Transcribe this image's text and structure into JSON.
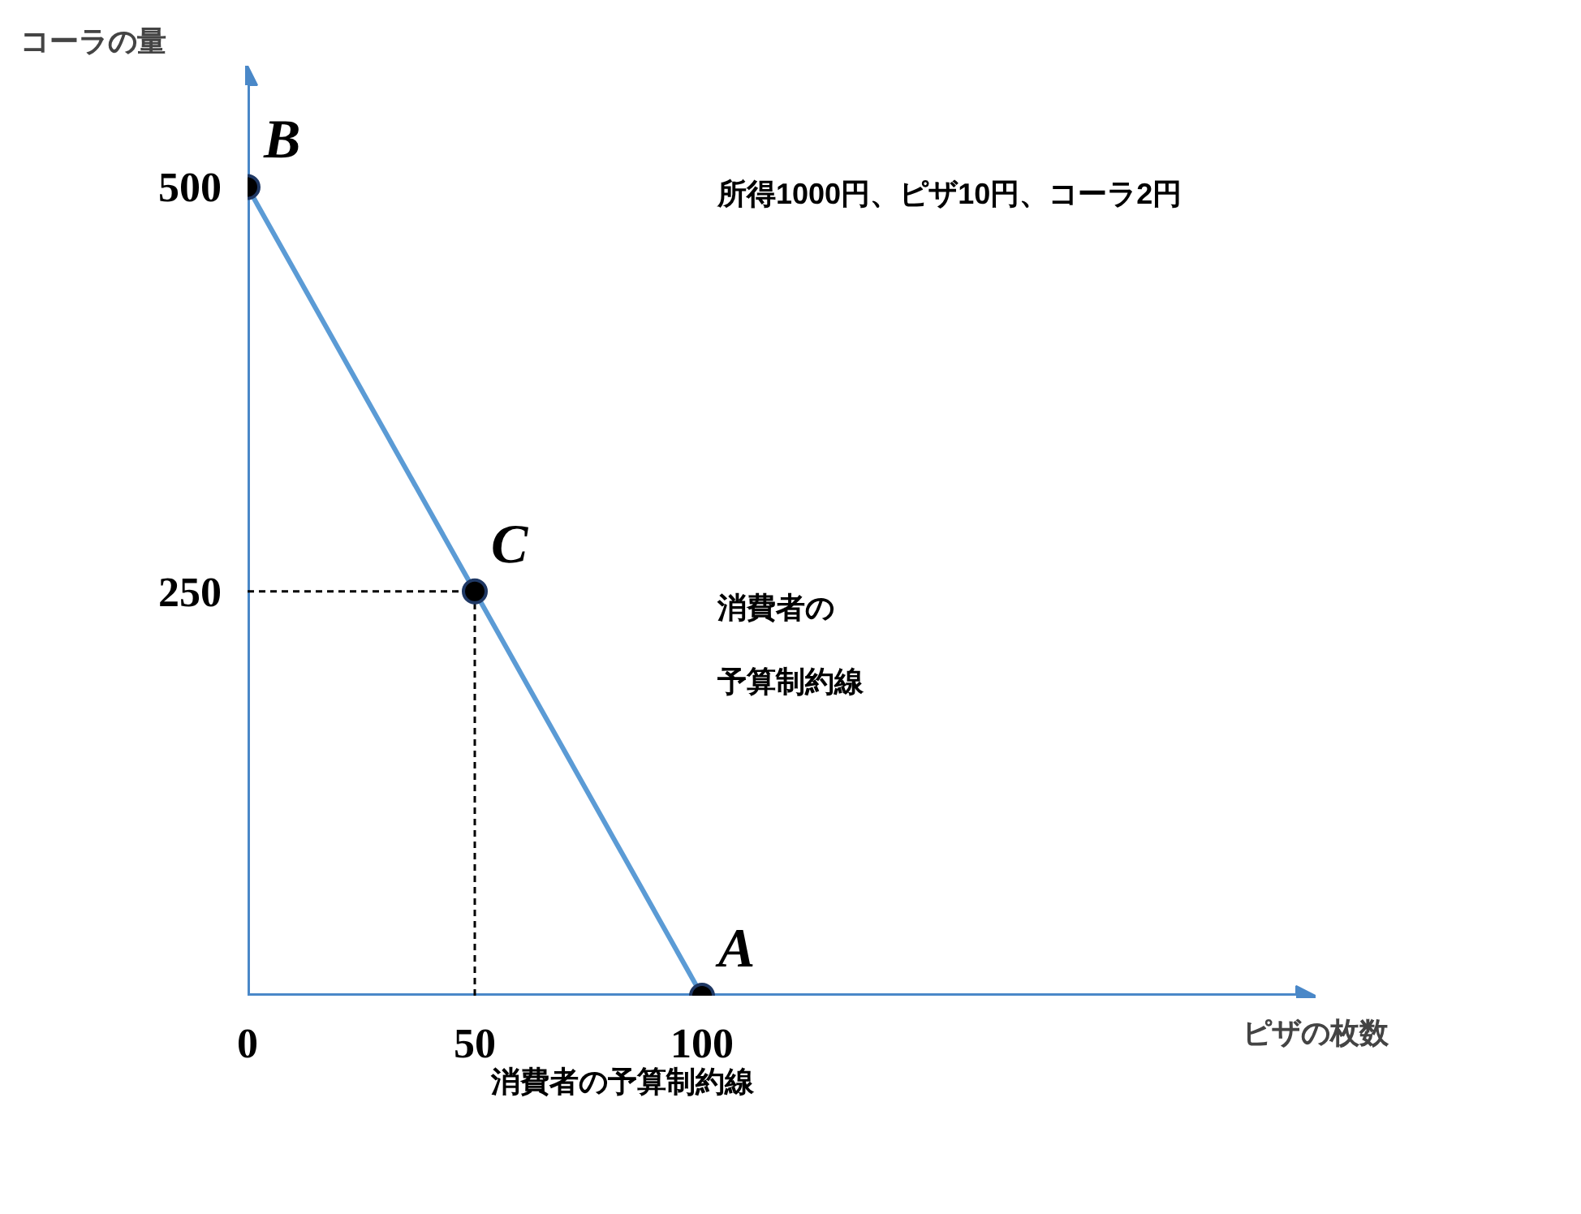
{
  "chart_data": {
    "type": "line",
    "xlabel": "ピザの枚数",
    "ylabel": "コーラの量",
    "x": [
      0,
      50,
      100
    ],
    "series": [
      {
        "color": "#5b9bd5",
        "values": [
          500,
          250,
          0
        ]
      }
    ],
    "xlim": [
      0,
      235
    ],
    "ylim": [
      0,
      575
    ],
    "xticks": [
      0,
      50,
      100
    ],
    "yticks": [
      250,
      500
    ],
    "marker": "circle",
    "grid": false,
    "ref_lines": [
      {
        "axis": "x",
        "value": 50,
        "line_style": "dashed",
        "color": "#000000"
      },
      {
        "axis": "y",
        "value": 250,
        "line_style": "dashed",
        "color": "#000000"
      }
    ],
    "annotations": [
      {
        "text": "B",
        "x": 0,
        "y": 500
      },
      {
        "text": "C",
        "x": 50,
        "y": 250
      },
      {
        "text": "A",
        "x": 100,
        "y": 0
      },
      "所得1000円、ピザ10円、コーラ2円",
      "消費者の",
      "予算制約線",
      "消費者の予算制約線"
    ]
  }
}
